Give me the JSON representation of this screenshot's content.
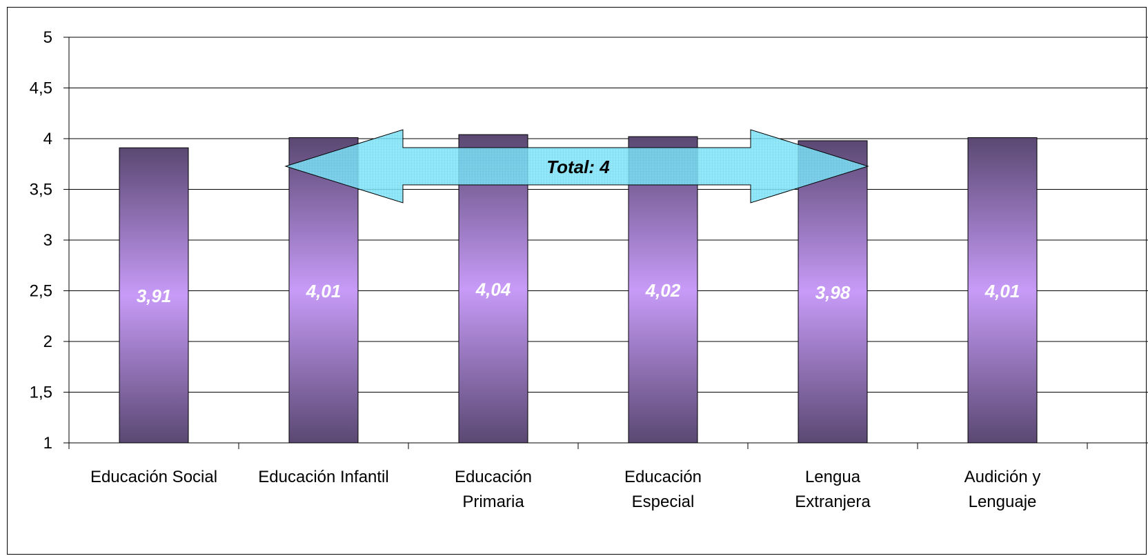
{
  "chart_data": {
    "type": "bar",
    "categories": [
      [
        "Educación Social"
      ],
      [
        "Educación Infantil"
      ],
      [
        "Educación",
        "Primaria"
      ],
      [
        "Educación",
        "Especial"
      ],
      [
        "Lengua",
        "Extranjera"
      ],
      [
        "Audición y",
        "Lenguaje"
      ]
    ],
    "values": [
      3.91,
      4.01,
      4.04,
      4.02,
      3.98,
      4.01
    ],
    "data_labels": [
      "3,91",
      "4,01",
      "4,04",
      "4,02",
      "3,98",
      "4,01"
    ],
    "ylim": [
      1,
      5
    ],
    "yticks": [
      1,
      1.5,
      2,
      2.5,
      3,
      3.5,
      4,
      4.5,
      5
    ],
    "ytick_labels": [
      "1",
      "1,5",
      "2",
      "2,5",
      "3",
      "3,5",
      "4",
      "4,5",
      "5"
    ],
    "grid": true,
    "title": "",
    "xlabel": "",
    "ylabel": "",
    "annotation": {
      "text": "Total: 4",
      "value": 4
    },
    "colors": {
      "bar_edge": "#5a4872",
      "bar_center": "#c79bf7",
      "bar_outline": "#000000",
      "arrow_fill": "#7fe3f7",
      "arrow_stroke": "#000000",
      "grid": "#000000"
    }
  }
}
